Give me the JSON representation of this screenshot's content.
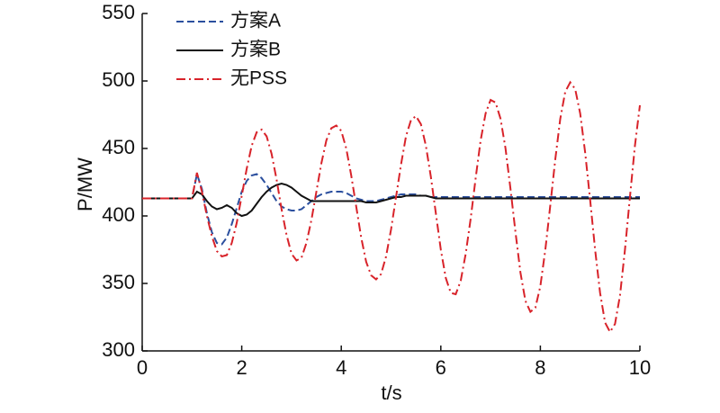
{
  "chart_data": {
    "type": "line",
    "x_label": "t/s",
    "y_label": "P/MW",
    "x": [
      0,
      0.1,
      0.2,
      0.3,
      0.4,
      0.5,
      0.6,
      0.7,
      0.8,
      0.9,
      1,
      1.1,
      1.2,
      1.3,
      1.4,
      1.5,
      1.6,
      1.7,
      1.8,
      1.9,
      2,
      2.1,
      2.2,
      2.3,
      2.4,
      2.5,
      2.6,
      2.7,
      2.8,
      2.9,
      3,
      3.1,
      3.2,
      3.3,
      3.4,
      3.5,
      3.6,
      3.7,
      3.8,
      3.9,
      4,
      4.1,
      4.2,
      4.3,
      4.4,
      4.5,
      4.6,
      4.7,
      4.8,
      4.9,
      5,
      5.1,
      5.2,
      5.3,
      5.4,
      5.5,
      5.6,
      5.7,
      5.8,
      5.9,
      6,
      6.1,
      6.2,
      6.3,
      6.4,
      6.5,
      6.6,
      6.7,
      6.8,
      6.9,
      7,
      7.1,
      7.2,
      7.3,
      7.4,
      7.5,
      7.6,
      7.7,
      7.8,
      7.9,
      8,
      8.1,
      8.2,
      8.3,
      8.4,
      8.5,
      8.6,
      8.7,
      8.8,
      8.9,
      9,
      9.1,
      9.2,
      9.3,
      9.4,
      9.5,
      9.6,
      9.7,
      9.8,
      9.9,
      10
    ],
    "series": [
      {
        "name": "方案A",
        "color": "#2b4f9e",
        "dash": "dashed",
        "values": [
          413,
          413,
          413,
          413,
          413,
          413,
          413,
          413,
          413,
          413,
          413,
          431,
          420,
          402,
          388,
          380,
          379,
          384,
          394,
          406,
          418,
          426,
          430,
          431,
          428,
          423,
          417,
          411,
          407,
          405,
          404,
          404,
          405,
          408,
          411,
          414,
          416,
          417,
          418,
          418,
          418,
          417,
          415,
          413,
          412,
          411,
          411,
          411,
          412,
          413,
          414,
          415,
          416,
          416,
          416,
          416,
          415,
          415,
          414,
          414,
          414,
          414,
          414,
          414,
          414,
          414,
          414,
          414,
          414,
          414,
          414,
          414,
          414,
          414,
          414,
          414,
          414,
          414,
          414,
          414,
          414,
          414,
          414,
          414,
          414,
          414,
          414,
          414,
          414,
          414,
          414,
          414,
          414,
          414,
          414,
          414,
          414,
          414,
          414,
          414,
          414
        ]
      },
      {
        "name": "方案B",
        "color": "#111111",
        "dash": "solid",
        "values": [
          413,
          413,
          413,
          413,
          413,
          413,
          413,
          413,
          413,
          413,
          413,
          418,
          416,
          411,
          407,
          405,
          406,
          408,
          406,
          402,
          400,
          401,
          404,
          409,
          414,
          418,
          421,
          423,
          424,
          423,
          421,
          418,
          415,
          413,
          411,
          411,
          411,
          411,
          411,
          411,
          411,
          411,
          411,
          411,
          411,
          410,
          410,
          410,
          411,
          412,
          413,
          414,
          414,
          415,
          415,
          415,
          415,
          415,
          414,
          413,
          413,
          413,
          413,
          413,
          413,
          413,
          413,
          413,
          413,
          413,
          413,
          413,
          413,
          413,
          413,
          413,
          413,
          413,
          413,
          413,
          413,
          413,
          413,
          413,
          413,
          413,
          413,
          413,
          413,
          413,
          413,
          413,
          413,
          413,
          413,
          413,
          413,
          413,
          413,
          413,
          413
        ]
      },
      {
        "name": "无PSS",
        "color": "#d8232a",
        "dash": "dashdot",
        "values": [
          413,
          413,
          413,
          413,
          413,
          413,
          413,
          413,
          413,
          413,
          413,
          432,
          418,
          400,
          385,
          374,
          370,
          371,
          380,
          395,
          415,
          435,
          452,
          462,
          464,
          459,
          446,
          427,
          405,
          386,
          372,
          367,
          369,
          380,
          397,
          418,
          439,
          456,
          465,
          467,
          463,
          450,
          430,
          407,
          384,
          366,
          356,
          353,
          357,
          370,
          390,
          414,
          438,
          459,
          471,
          474,
          468,
          452,
          429,
          402,
          375,
          354,
          343,
          342,
          352,
          372,
          398,
          428,
          456,
          476,
          486,
          484,
          472,
          450,
          420,
          388,
          358,
          337,
          329,
          332,
          348,
          375,
          408,
          442,
          472,
          492,
          499,
          494,
          476,
          447,
          412,
          375,
          343,
          321,
          314,
          320,
          341,
          375,
          414,
          452,
          482
        ]
      }
    ],
    "xlim": [
      0,
      10
    ],
    "xticks": [
      0,
      2,
      4,
      6,
      8,
      10
    ],
    "ylim": [
      300,
      550
    ],
    "yticks": [
      300,
      350,
      400,
      450,
      500,
      550
    ],
    "legend": "upper left",
    "grid": false
  }
}
